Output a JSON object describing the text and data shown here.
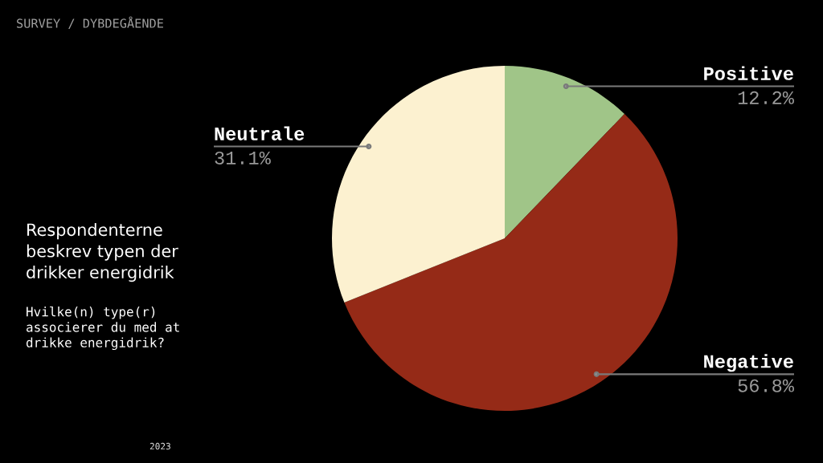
{
  "chart_data": {
    "type": "pie",
    "title": "Respondenterne\nbeskrev typen der\ndrikker energidrik",
    "subtitle": "Hvilke(n) type(r)\nassocierer du med at\ndrikke energidrik?",
    "categories": [
      "Positive",
      "Negative",
      "Neutrale"
    ],
    "values": [
      12.2,
      56.8,
      31.1
    ],
    "colors": [
      "#a0c588",
      "#952a17",
      "#fcf1d0"
    ],
    "value_labels": [
      "12.2%",
      "56.8%",
      "31.1%"
    ],
    "annotations": [
      "SURVEY / DYBDEGÅENDE",
      "2023"
    ]
  }
}
